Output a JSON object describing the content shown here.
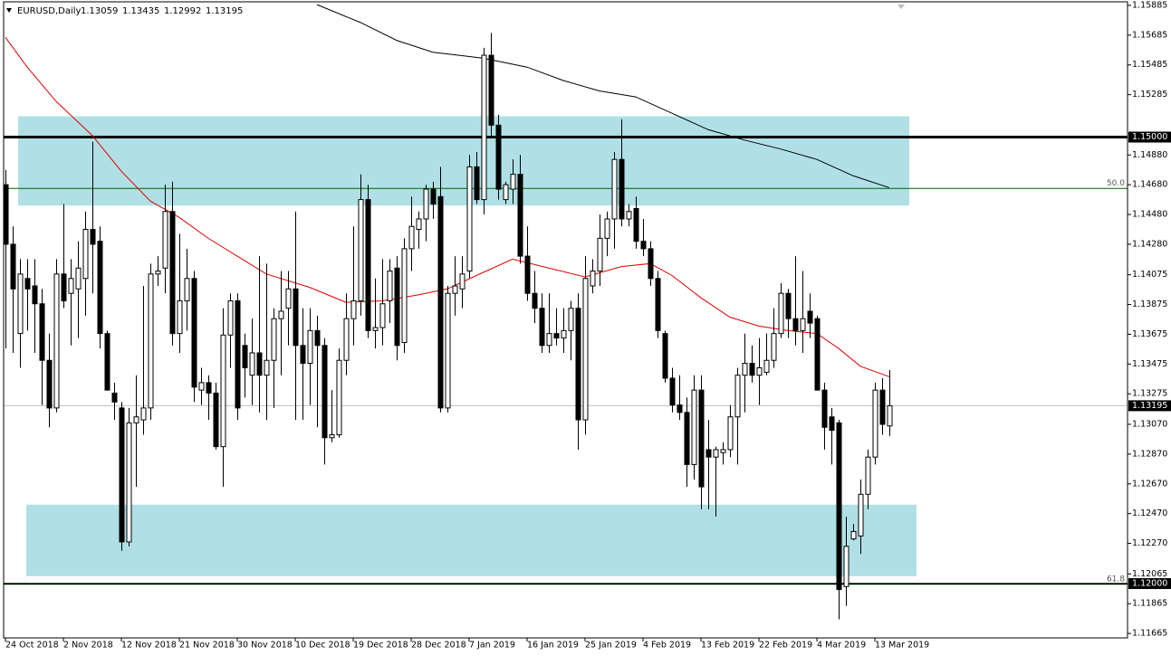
{
  "chart_data": {
    "type": "candlestick",
    "symbol": "EURUSD,Daily",
    "ylim": [
      1.11635,
      1.15909
    ],
    "yticks": [
      1.15885,
      1.15685,
      1.15485,
      1.15285,
      {
        "value": 1.1488,
        "label": "1.14880"
      },
      {
        "value": 1.1468,
        "label": "1.14680"
      },
      {
        "value": 1.1448,
        "label": "1.14480"
      },
      {
        "value": 1.1428,
        "label": "1.14280"
      },
      1.14075,
      1.13875,
      1.13675,
      1.13475,
      1.13275,
      {
        "value": 1.1307,
        "label": "1.13070"
      },
      {
        "value": 1.1287,
        "label": "1.12870"
      },
      {
        "value": 1.1267,
        "label": "1.12670"
      },
      {
        "value": 1.1247,
        "label": "1.12470"
      },
      {
        "value": 1.1227,
        "label": "1.12270"
      },
      1.12065,
      1.11865,
      1.11665
    ],
    "categories": [
      "24 Oct 2018",
      null,
      null,
      null,
      null,
      null,
      null,
      null,
      "2 Nov 2018",
      null,
      null,
      null,
      null,
      null,
      null,
      null,
      "12 Nov 2018",
      null,
      null,
      null,
      null,
      null,
      null,
      null,
      "21 Nov 2018",
      null,
      null,
      null,
      null,
      null,
      null,
      null,
      "30 Nov 2018",
      null,
      null,
      null,
      null,
      null,
      null,
      null,
      "10 Dec 2018",
      null,
      null,
      null,
      null,
      null,
      null,
      null,
      "19 Dec 2018",
      null,
      null,
      null,
      null,
      null,
      null,
      null,
      "28 Dec 2018",
      null,
      null,
      null,
      null,
      null,
      null,
      null,
      "7 Jan 2019",
      null,
      null,
      null,
      null,
      null,
      null,
      null,
      "16 Jan 2019",
      null,
      null,
      null,
      null,
      null,
      null,
      null,
      "25 Jan 2019",
      null,
      null,
      null,
      null,
      null,
      null,
      null,
      "4 Feb 2019",
      null,
      null,
      null,
      null,
      null,
      null,
      null,
      "13 Feb 2019",
      null,
      null,
      null,
      null,
      null,
      null,
      null,
      "22 Feb 2019",
      null,
      null,
      null,
      null,
      null,
      null,
      null,
      "4 Mar 2019",
      null,
      null,
      null,
      null,
      null,
      null,
      null,
      "13 Mar 2019",
      null,
      null
    ],
    "candles": [
      [
        1.1468,
        1.1478,
        1.1358,
        1.1428
      ],
      [
        1.1428,
        1.144,
        1.1355,
        1.1398
      ],
      [
        1.1368,
        1.1418,
        1.1345,
        1.1408
      ],
      [
        1.1405,
        1.1418,
        1.137,
        1.1398
      ],
      [
        1.14,
        1.1418,
        1.1355,
        1.1388
      ],
      [
        1.1388,
        1.1398,
        1.132,
        1.135
      ],
      [
        1.135,
        1.1368,
        1.1305,
        1.1318
      ],
      [
        1.1318,
        1.1418,
        1.1315,
        1.1408
      ],
      [
        1.1408,
        1.1455,
        1.1385,
        1.139
      ],
      [
        1.1395,
        1.1418,
        1.136,
        1.1405
      ],
      [
        1.1398,
        1.143,
        1.1365,
        1.1412
      ],
      [
        1.1405,
        1.145,
        1.138,
        1.1438
      ],
      [
        1.1438,
        1.1497,
        1.1395,
        1.1428
      ],
      [
        1.143,
        1.144,
        1.1358,
        1.1368
      ],
      [
        1.1368,
        1.137,
        1.133,
        1.133
      ],
      [
        1.1328,
        1.1335,
        1.131,
        1.1322
      ],
      [
        1.1318,
        1.1322,
        1.1222,
        1.1228
      ],
      [
        1.1228,
        1.1318,
        1.1225,
        1.1308
      ],
      [
        1.1308,
        1.134,
        1.1265,
        1.1312
      ],
      [
        1.131,
        1.14,
        1.13,
        1.1318
      ],
      [
        1.1318,
        1.1415,
        1.131,
        1.1408
      ],
      [
        1.1408,
        1.142,
        1.14,
        1.141
      ],
      [
        1.1412,
        1.1468,
        1.1395,
        1.145
      ],
      [
        1.145,
        1.147,
        1.136,
        1.1368
      ],
      [
        1.1368,
        1.1435,
        1.1355,
        1.139
      ],
      [
        1.139,
        1.1425,
        1.137,
        1.1405
      ],
      [
        1.1405,
        1.141,
        1.1322,
        1.1332
      ],
      [
        1.133,
        1.1345,
        1.132,
        1.1335
      ],
      [
        1.1335,
        1.134,
        1.131,
        1.1328
      ],
      [
        1.1328,
        1.1335,
        1.129,
        1.1292
      ],
      [
        1.1292,
        1.1385,
        1.1265,
        1.1367
      ],
      [
        1.1367,
        1.1395,
        1.1345,
        1.139
      ],
      [
        1.139,
        1.1395,
        1.131,
        1.1318
      ],
      [
        1.136,
        1.1368,
        1.1325,
        1.1345
      ],
      [
        1.134,
        1.1378,
        1.132,
        1.1355
      ],
      [
        1.1355,
        1.142,
        1.1315,
        1.134
      ],
      [
        1.134,
        1.1415,
        1.131,
        1.135
      ],
      [
        1.135,
        1.1385,
        1.1318,
        1.1378
      ],
      [
        1.1378,
        1.141,
        1.134,
        1.1383
      ],
      [
        1.1385,
        1.141,
        1.136,
        1.1398
      ],
      [
        1.1398,
        1.145,
        1.131,
        1.136
      ],
      [
        1.136,
        1.1385,
        1.131,
        1.1348
      ],
      [
        1.1348,
        1.1385,
        1.132,
        1.137
      ],
      [
        1.137,
        1.138,
        1.1305,
        1.136
      ],
      [
        1.136,
        1.1365,
        1.128,
        1.1298
      ],
      [
        1.1298,
        1.133,
        1.1295,
        1.13
      ],
      [
        1.13,
        1.1358,
        1.1298,
        1.135
      ],
      [
        1.135,
        1.1395,
        1.134,
        1.1378
      ],
      [
        1.1378,
        1.144,
        1.136,
        1.139
      ],
      [
        1.139,
        1.1475,
        1.138,
        1.1458
      ],
      [
        1.1458,
        1.1468,
        1.1365,
        1.137
      ],
      [
        1.137,
        1.1405,
        1.1358,
        1.1372
      ],
      [
        1.1372,
        1.1418,
        1.136,
        1.1388
      ],
      [
        1.139,
        1.1418,
        1.1375,
        1.141
      ],
      [
        1.1412,
        1.142,
        1.135,
        1.136
      ],
      [
        1.1362,
        1.1432,
        1.1355,
        1.1425
      ],
      [
        1.1425,
        1.146,
        1.141,
        1.144
      ],
      [
        1.1438,
        1.145,
        1.1425,
        1.1445
      ],
      [
        1.1445,
        1.1468,
        1.143,
        1.1465
      ],
      [
        1.1465,
        1.147,
        1.1445,
        1.1455
      ],
      [
        1.146,
        1.148,
        1.1315,
        1.1318
      ],
      [
        1.1318,
        1.14,
        1.1315,
        1.1395
      ],
      [
        1.1395,
        1.142,
        1.138,
        1.14
      ],
      [
        1.1398,
        1.142,
        1.1385,
        1.1408
      ],
      [
        1.141,
        1.1488,
        1.1405,
        1.148
      ],
      [
        1.148,
        1.149,
        1.1455,
        1.1458
      ],
      [
        1.1458,
        1.156,
        1.1448,
        1.1555
      ],
      [
        1.1555,
        1.157,
        1.15,
        1.1508
      ],
      [
        1.1508,
        1.1515,
        1.1458,
        1.1465
      ],
      [
        1.1458,
        1.147,
        1.1455,
        1.1468
      ],
      [
        1.1465,
        1.1485,
        1.1455,
        1.1475
      ],
      [
        1.1475,
        1.1488,
        1.1415,
        1.142
      ],
      [
        1.142,
        1.144,
        1.139,
        1.1395
      ],
      [
        1.1395,
        1.141,
        1.1375,
        1.1385
      ],
      [
        1.1385,
        1.1395,
        1.1355,
        1.136
      ],
      [
        1.136,
        1.1395,
        1.1355,
        1.1368
      ],
      [
        1.1368,
        1.1385,
        1.136,
        1.1365
      ],
      [
        1.1365,
        1.1385,
        1.1355,
        1.137
      ],
      [
        1.137,
        1.139,
        1.135,
        1.1385
      ],
      [
        1.1385,
        1.1395,
        1.129,
        1.131
      ],
      [
        1.131,
        1.142,
        1.13,
        1.1405
      ],
      [
        1.14,
        1.1418,
        1.1395,
        1.141
      ],
      [
        1.141,
        1.1448,
        1.14,
        1.1432
      ],
      [
        1.1432,
        1.145,
        1.142,
        1.1445
      ],
      [
        1.1445,
        1.149,
        1.1425,
        1.1485
      ],
      [
        1.1485,
        1.1512,
        1.144,
        1.1445
      ],
      [
        1.1445,
        1.1455,
        1.144,
        1.145
      ],
      [
        1.1452,
        1.146,
        1.1425,
        1.143
      ],
      [
        1.143,
        1.1445,
        1.142,
        1.1425
      ],
      [
        1.1425,
        1.143,
        1.14,
        1.1405
      ],
      [
        1.1405,
        1.141,
        1.1365,
        1.137
      ],
      [
        1.1368,
        1.137,
        1.1335,
        1.1338
      ],
      [
        1.1338,
        1.1345,
        1.1315,
        1.132
      ],
      [
        1.132,
        1.134,
        1.131,
        1.1315
      ],
      [
        1.1315,
        1.1325,
        1.1265,
        1.128
      ],
      [
        1.128,
        1.134,
        1.127,
        1.133
      ],
      [
        1.133,
        1.134,
        1.125,
        1.1265
      ],
      [
        1.129,
        1.131,
        1.125,
        1.1285
      ],
      [
        1.1285,
        1.1292,
        1.1245,
        1.129
      ],
      [
        1.1288,
        1.1295,
        1.128,
        1.129
      ],
      [
        1.129,
        1.132,
        1.1285,
        1.1312
      ],
      [
        1.1312,
        1.1345,
        1.128,
        1.134
      ],
      [
        1.134,
        1.1368,
        1.1315,
        1.1348
      ],
      [
        1.1348,
        1.136,
        1.1335,
        1.134
      ],
      [
        1.134,
        1.1365,
        1.132,
        1.1345
      ],
      [
        1.1342,
        1.1368,
        1.134,
        1.135
      ],
      [
        1.135,
        1.1385,
        1.1345,
        1.1368
      ],
      [
        1.1368,
        1.1402,
        1.1365,
        1.1395
      ],
      [
        1.1395,
        1.1398,
        1.1365,
        1.1378
      ],
      [
        1.1378,
        1.142,
        1.136,
        1.137
      ],
      [
        1.137,
        1.141,
        1.1355,
        1.1378
      ],
      [
        1.1383,
        1.1395,
        1.1365,
        1.1375
      ],
      [
        1.1378,
        1.138,
        1.133,
        1.133
      ],
      [
        1.133,
        1.1335,
        1.129,
        1.1305
      ],
      [
        1.1312,
        1.1318,
        1.128,
        1.1303
      ],
      [
        1.1308,
        1.131,
        1.1176,
        1.1196
      ],
      [
        1.1198,
        1.1245,
        1.1185,
        1.1225
      ],
      [
        1.123,
        1.124,
        1.1229,
        1.1235
      ],
      [
        1.1232,
        1.127,
        1.122,
        1.126
      ],
      [
        1.126,
        1.129,
        1.125,
        1.1285
      ],
      [
        1.1285,
        1.1335,
        1.128,
        1.133
      ],
      [
        1.133,
        1.1338,
        1.13,
        1.1307
      ],
      [
        1.13059,
        1.13435,
        1.12992,
        1.13195
      ]
    ],
    "moving_averages": [
      {
        "color": "#e00000",
        "x": [
          0,
          3,
          7,
          12,
          16,
          20,
          24,
          28,
          32,
          36,
          42,
          47,
          52,
          57,
          61,
          65,
          70,
          75,
          80,
          85,
          89,
          92,
          96,
          100,
          104,
          108,
          112,
          115,
          118,
          122
        ],
        "values": [
          1.1567,
          1.1547,
          1.1524,
          1.1501,
          1.1477,
          1.1457,
          1.1446,
          1.1432,
          1.142,
          1.1408,
          1.1399,
          1.1389,
          1.139,
          1.1394,
          1.1398,
          1.1407,
          1.1418,
          1.1412,
          1.1406,
          1.1413,
          1.1415,
          1.1407,
          1.1392,
          1.1379,
          1.1373,
          1.137,
          1.1368,
          1.1358,
          1.1346,
          1.1339
        ]
      },
      {
        "color": "#000000",
        "x": [
          43,
          49,
          54,
          59,
          66,
          72,
          77,
          82,
          87,
          92,
          97,
          102,
          107,
          112,
          117,
          122
        ],
        "values": [
          1.1589,
          1.1577,
          1.1565,
          1.1557,
          1.1553,
          1.1547,
          1.1538,
          1.1531,
          1.1527,
          1.1516,
          1.1505,
          1.1498,
          1.1492,
          1.1485,
          1.1474,
          1.1466
        ]
      }
    ],
    "zones": [
      {
        "top": 1.1514,
        "bottom": 1.1454,
        "color": "#b0e0e6"
      },
      {
        "top": 1.1253,
        "bottom": 1.1205,
        "color": "#b0e0e6"
      }
    ],
    "levels": [
      {
        "value": 1.15,
        "label": "1.15000",
        "color": "#000000"
      },
      {
        "value": 1.12,
        "label": "1.12000",
        "color": "#000000"
      }
    ],
    "fib_levels": [
      {
        "value": 1.14655,
        "label": "50.0",
        "color": "#006400"
      },
      {
        "value": 1.11995,
        "label": "61.8",
        "color": "#006400"
      }
    ]
  }
}
